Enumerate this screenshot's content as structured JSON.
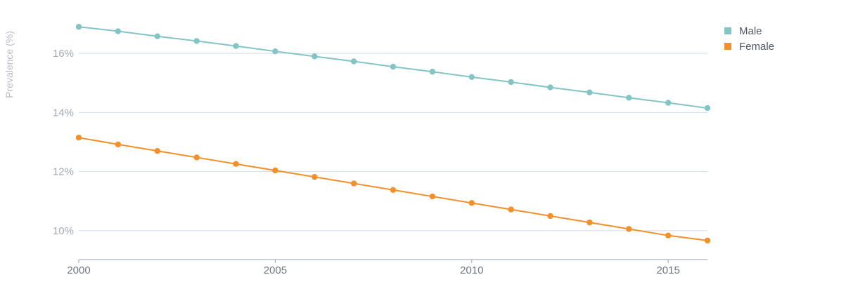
{
  "chart_data": {
    "type": "line",
    "title": "",
    "xlabel": "",
    "ylabel": "Prevalence (%)",
    "x": [
      2000,
      2001,
      2002,
      2003,
      2004,
      2005,
      2006,
      2007,
      2008,
      2009,
      2010,
      2011,
      2012,
      2013,
      2014,
      2015,
      2016
    ],
    "x_ticks": [
      "2000",
      "2005",
      "2010",
      "2015"
    ],
    "y_ticks": [
      "10%",
      "12%",
      "14%",
      "16%"
    ],
    "ylim": [
      9.0,
      17.3
    ],
    "grid": "horizontal",
    "legend": "top-right",
    "series": [
      {
        "name": "Male",
        "color": "#82c5c4",
        "values": [
          16.9,
          16.75,
          16.58,
          16.42,
          16.25,
          16.07,
          15.9,
          15.73,
          15.55,
          15.38,
          15.2,
          15.03,
          14.85,
          14.68,
          14.5,
          14.33,
          14.15
        ]
      },
      {
        "name": "Female",
        "color": "#f4902a",
        "values": [
          13.15,
          12.92,
          12.7,
          12.48,
          12.26,
          12.04,
          11.82,
          11.6,
          11.38,
          11.16,
          10.94,
          10.72,
          10.5,
          10.28,
          10.06,
          9.84,
          9.67
        ]
      }
    ]
  }
}
